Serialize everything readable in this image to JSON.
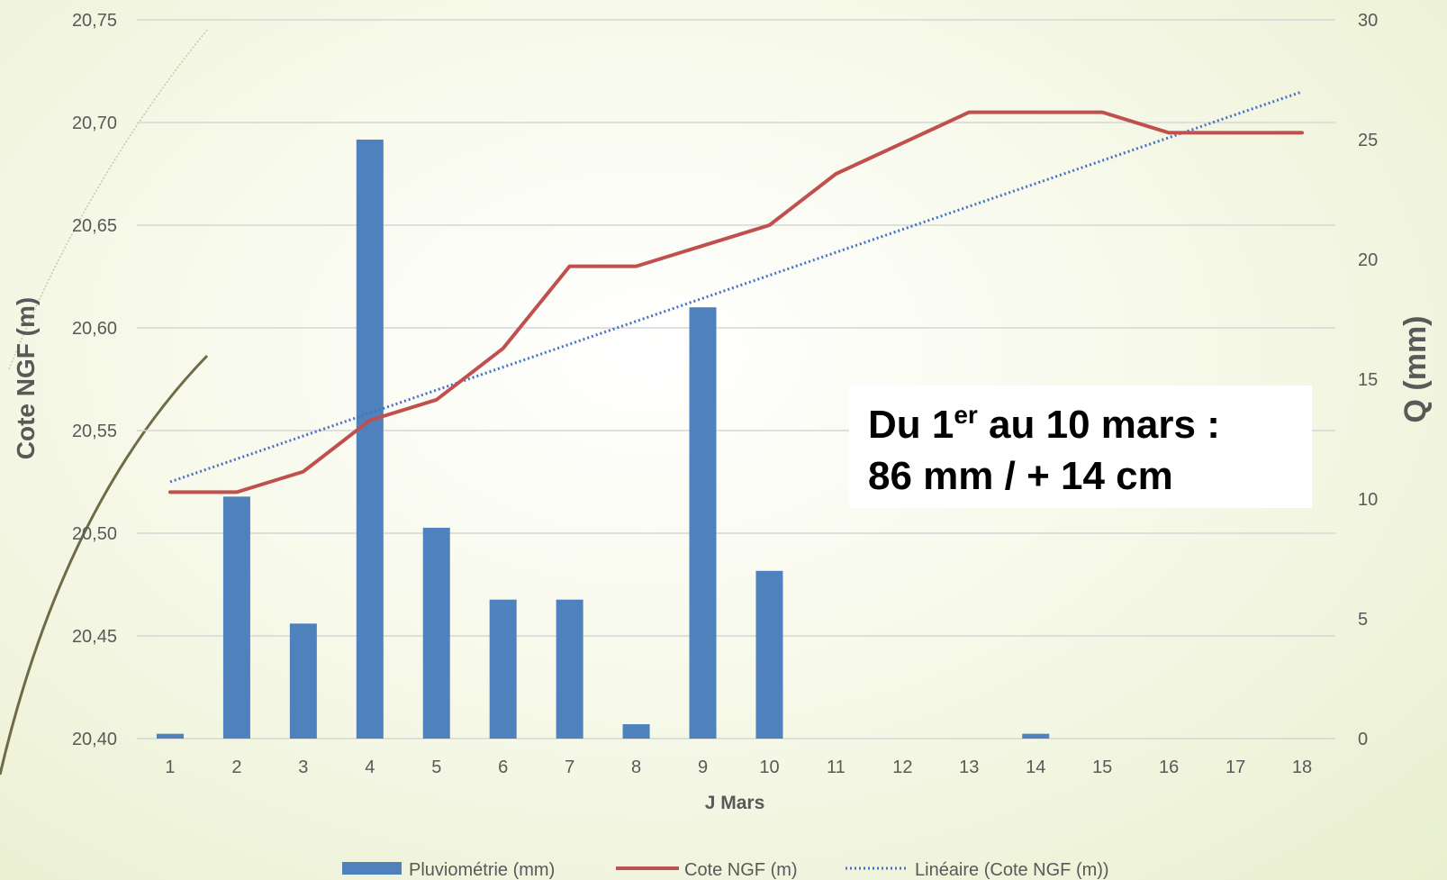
{
  "chart_data": {
    "type": "bar",
    "categories": [
      "1",
      "2",
      "3",
      "4",
      "5",
      "6",
      "7",
      "8",
      "9",
      "10",
      "11",
      "12",
      "13",
      "14",
      "15",
      "16",
      "17",
      "18"
    ],
    "series": [
      {
        "name": "Pluviométrie (mm)",
        "kind": "bar",
        "axis": "right",
        "color": "#4F81BD",
        "values": [
          0.2,
          10.1,
          4.8,
          25.0,
          8.8,
          5.8,
          5.8,
          0.6,
          18.0,
          7.0,
          0,
          0,
          0,
          0.2,
          0,
          0,
          0,
          0
        ]
      },
      {
        "name": "Cote NGF (m)",
        "kind": "line",
        "axis": "left",
        "color": "#C0504D",
        "values": [
          20.52,
          20.52,
          20.53,
          20.555,
          20.565,
          20.59,
          20.63,
          20.63,
          20.64,
          20.65,
          20.675,
          20.69,
          20.705,
          20.705,
          20.705,
          20.695,
          20.695,
          20.695
        ]
      },
      {
        "name": "Linéaire (Cote NGF (m))",
        "kind": "trendline",
        "axis": "left",
        "color": "#4472C4",
        "values_start_end": [
          20.525,
          20.715
        ]
      }
    ],
    "y_left": {
      "label": "Cote NGF (m)",
      "range": [
        20.4,
        20.75
      ],
      "ticks": [
        "20,40",
        "20,45",
        "20,50",
        "20,55",
        "20,60",
        "20,65",
        "20,70",
        "20,75"
      ]
    },
    "y_right": {
      "label": "Q (mm)",
      "range": [
        0,
        30
      ],
      "ticks": [
        "0",
        "5",
        "10",
        "15",
        "20",
        "25",
        "30"
      ]
    },
    "xlabel": "J Mars",
    "grid": true,
    "legend_position": "bottom",
    "annotation": {
      "line1_prefix": "Du 1",
      "line1_sup": "er",
      "line1_suffix": " au 10 mars :",
      "line2": "86 mm / + 14 cm"
    }
  }
}
